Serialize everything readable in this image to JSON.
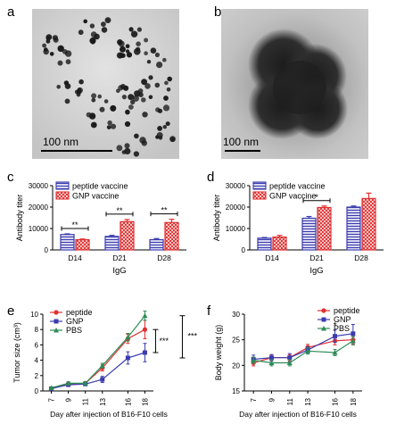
{
  "panels": {
    "a": {
      "letter": "a",
      "scale_label": "100 nm"
    },
    "b": {
      "letter": "b",
      "scale_label": "100 nm"
    },
    "c": {
      "letter": "c"
    },
    "d": {
      "letter": "d"
    },
    "e": {
      "letter": "e"
    },
    "f": {
      "letter": "f"
    }
  },
  "chart_data": [
    {
      "id": "c",
      "type": "bar",
      "title": "",
      "xlabel": "IgG",
      "ylabel": "Antibody titer",
      "categories": [
        "D14",
        "D21",
        "D28"
      ],
      "ylim": [
        0,
        30000
      ],
      "yticks": [
        "0",
        "10000",
        "20000",
        "30000"
      ],
      "legend_position": "top-left",
      "series": [
        {
          "name": "peptide vaccine",
          "color": "#3b3bb0",
          "values": [
            7200,
            6300,
            4800
          ],
          "errors": [
            300,
            500,
            500
          ]
        },
        {
          "name": "GNP vaccine",
          "color": "#e03030",
          "values": [
            4800,
            13200,
            12800
          ],
          "errors": [
            300,
            1000,
            1500
          ]
        }
      ],
      "significance": [
        {
          "category": "D14",
          "label": "**"
        },
        {
          "category": "D21",
          "label": "**"
        },
        {
          "category": "D28",
          "label": "**"
        }
      ]
    },
    {
      "id": "d",
      "type": "bar",
      "title": "",
      "xlabel": "IgG",
      "ylabel": "Antibody titer",
      "categories": [
        "D14",
        "D21",
        "D28"
      ],
      "ylim": [
        0,
        30000
      ],
      "yticks": [
        "0",
        "10000",
        "20000",
        "30000"
      ],
      "legend_position": "top-left",
      "series": [
        {
          "name": "peptide vaccine",
          "color": "#3b3bb0",
          "values": [
            5500,
            14800,
            20000
          ],
          "errors": [
            300,
            800,
            500
          ]
        },
        {
          "name": "GNP vaccine",
          "color": "#e03030",
          "values": [
            6000,
            19800,
            24000
          ],
          "errors": [
            800,
            700,
            2500
          ]
        }
      ],
      "significance": [
        {
          "category": "D21",
          "label": "*"
        }
      ]
    },
    {
      "id": "e",
      "type": "line",
      "title": "",
      "xlabel": "Day after injection of B16-F10 cells",
      "ylabel": "Tumor size (cm³)",
      "x": [
        7,
        9,
        11,
        13,
        16,
        18
      ],
      "xticks": [
        "7",
        "9",
        "11",
        "13",
        "16",
        "18"
      ],
      "ylim": [
        0,
        10
      ],
      "yticks": [
        "0",
        "2",
        "4",
        "6",
        "8",
        "10"
      ],
      "legend_position": "top-left",
      "series": [
        {
          "name": "peptide",
          "color": "#e03030",
          "marker": "circle",
          "values": [
            0.3,
            0.9,
            1.0,
            3.0,
            6.8,
            8.0
          ],
          "errors": [
            0.1,
            0.2,
            0.2,
            0.4,
            0.6,
            1.2
          ]
        },
        {
          "name": "GNP",
          "color": "#3b3bb0",
          "marker": "square",
          "values": [
            0.3,
            0.8,
            0.9,
            1.5,
            4.3,
            5.0
          ],
          "errors": [
            0.1,
            0.2,
            0.2,
            0.4,
            0.8,
            1.2
          ]
        },
        {
          "name": "PBS",
          "color": "#2e8b57",
          "marker": "triangle",
          "values": [
            0.4,
            1.0,
            1.0,
            3.3,
            7.0,
            9.8
          ],
          "errors": [
            0.1,
            0.2,
            0.2,
            0.3,
            0.5,
            0.6
          ]
        }
      ],
      "significance": [
        {
          "label": "***",
          "span": "GNP-peptide"
        },
        {
          "label": "***",
          "span": "GNP-PBS"
        }
      ]
    },
    {
      "id": "f",
      "type": "line",
      "title": "",
      "xlabel": "Day after injection of B16-F10 cells",
      "ylabel": "Body weight (g)",
      "x": [
        7,
        9,
        11,
        13,
        16,
        18
      ],
      "xticks": [
        "7",
        "9",
        "11",
        "13",
        "16",
        "18"
      ],
      "ylim": [
        15,
        30
      ],
      "yticks": [
        "15",
        "20",
        "25",
        "30"
      ],
      "legend_position": "top-right",
      "series": [
        {
          "name": "peptide",
          "color": "#e03030",
          "marker": "circle",
          "values": [
            20.5,
            21.5,
            21.5,
            23.5,
            24.8,
            25.0
          ],
          "errors": [
            0.6,
            0.6,
            0.6,
            0.6,
            0.8,
            0.8
          ]
        },
        {
          "name": "GNP",
          "color": "#3b3bb0",
          "marker": "square",
          "values": [
            21.2,
            21.5,
            21.5,
            23.0,
            25.7,
            26.2
          ],
          "errors": [
            0.8,
            0.6,
            0.8,
            0.6,
            1.2,
            1.8
          ]
        },
        {
          "name": "PBS",
          "color": "#2e8b57",
          "marker": "triangle",
          "values": [
            21.0,
            20.5,
            20.5,
            22.8,
            22.5,
            24.8
          ],
          "errors": [
            0.6,
            0.6,
            0.6,
            0.6,
            0.6,
            0.8
          ]
        }
      ],
      "significance": [
        {
          "x": 16,
          "label": "*"
        }
      ]
    }
  ]
}
